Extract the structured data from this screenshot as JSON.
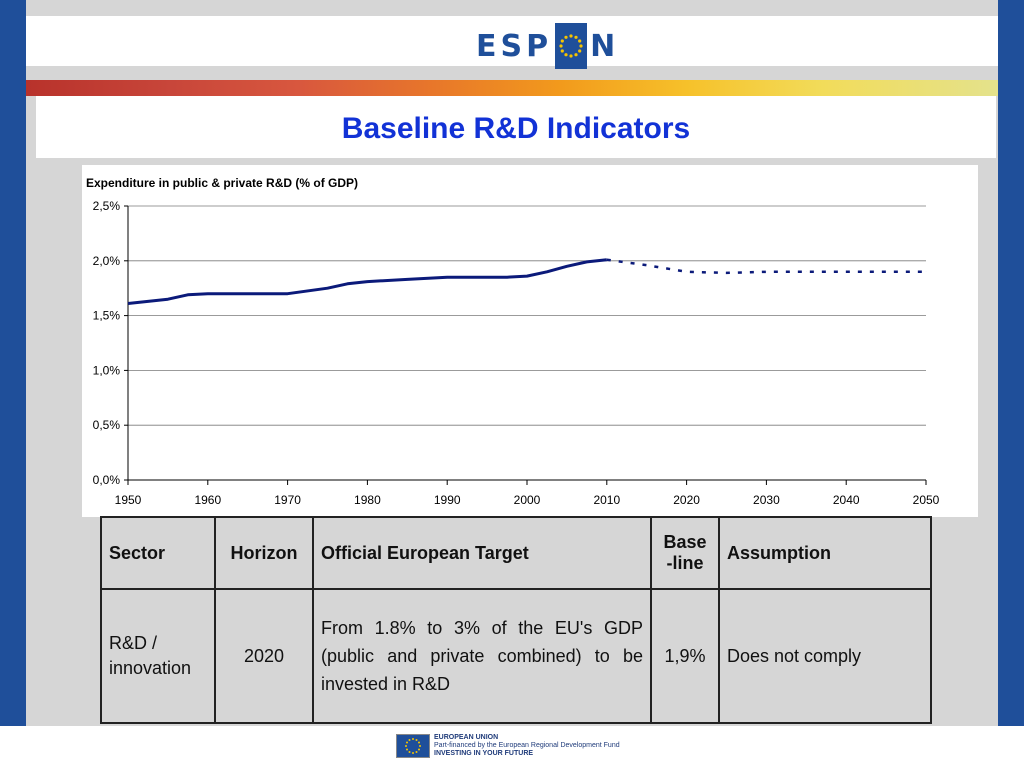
{
  "header": {
    "logo_left": "ESP",
    "logo_right": "N"
  },
  "slide": {
    "title": "Baseline R&D Indicators"
  },
  "chart_data": {
    "type": "line",
    "title": "Expenditure in public & private R&D (% of GDP)",
    "xlabel": "",
    "ylabel": "",
    "xlim": [
      1950,
      2050
    ],
    "ylim": [
      0,
      2.5
    ],
    "x_ticks": [
      "1950",
      "1960",
      "1970",
      "1980",
      "1990",
      "2000",
      "2010",
      "2020",
      "2030",
      "2040",
      "2050"
    ],
    "y_ticks": [
      "0,0%",
      "0,5%",
      "1,0%",
      "1,5%",
      "2,0%",
      "2,5%"
    ],
    "grid": true,
    "series": [
      {
        "style": "solid",
        "color": "#0b1a7a",
        "x": [
          1950,
          1955,
          1957.5,
          1960,
          1965,
          1970,
          1975,
          1977.5,
          1980,
          1985,
          1990,
          1995,
          1997.5,
          2000,
          2002.5,
          2005,
          2007.5,
          2010
        ],
        "y": [
          1.61,
          1.65,
          1.69,
          1.7,
          1.7,
          1.7,
          1.75,
          1.79,
          1.81,
          1.83,
          1.85,
          1.85,
          1.85,
          1.86,
          1.9,
          1.95,
          1.99,
          2.01
        ]
      },
      {
        "style": "dashed",
        "color": "#0b1a7a",
        "x": [
          2010,
          2015,
          2020,
          2025,
          2030,
          2035,
          2040,
          2045,
          2050
        ],
        "y": [
          2.01,
          1.96,
          1.9,
          1.89,
          1.9,
          1.9,
          1.9,
          1.9,
          1.9
        ]
      }
    ]
  },
  "table": {
    "headers": {
      "sector": "Sector",
      "horizon": "Horizon",
      "target": "Official European Target",
      "base": "Base -line",
      "assumption": "Assumption"
    },
    "row": {
      "sector": "R&D / innovation",
      "horizon": "2020",
      "target": "From 1.8% to 3% of the EU's GDP (public and private combined) to be invested in R&D",
      "base": "1,9%",
      "assumption": "Does not comply"
    }
  },
  "footer": {
    "line1": "EUROPEAN UNION",
    "line2": "Part-financed by the European Regional Development Fund",
    "line3": "INVESTING IN YOUR FUTURE"
  },
  "colors": {
    "brand_blue": "#1f4f9a",
    "title_blue": "#1232d6",
    "series": "#0b1a7a"
  }
}
